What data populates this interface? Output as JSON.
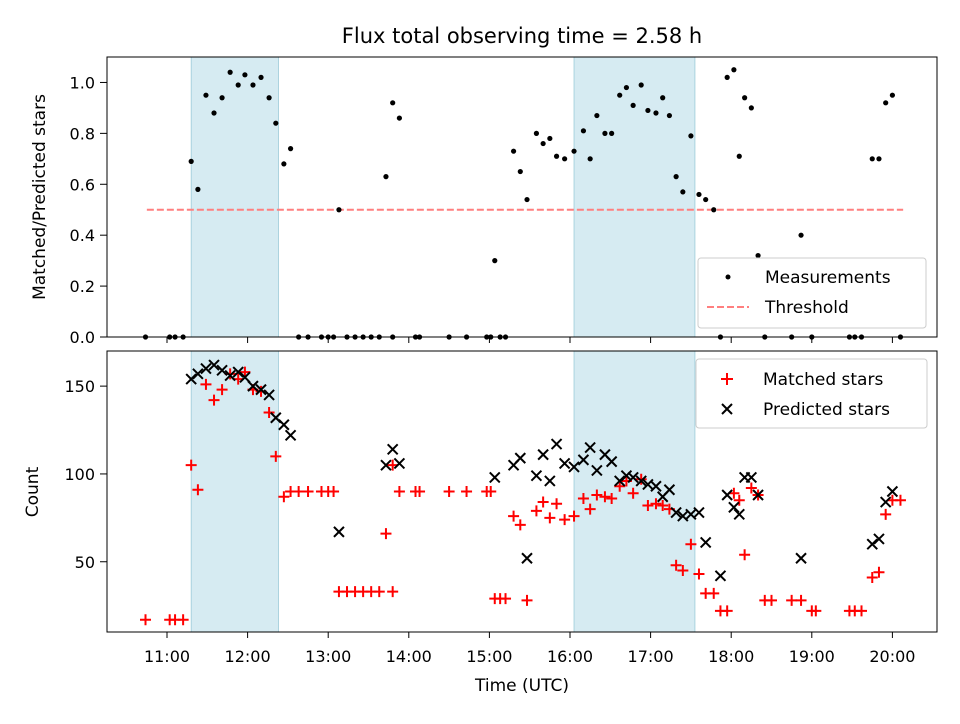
{
  "chart_data": [
    {
      "type": "scatter",
      "title": "Flux total observing time = 2.58 h",
      "xlabel": "",
      "ylabel": "Matched/Predicted stars",
      "ylim": [
        0,
        1.1
      ],
      "yticks": [
        "0.0",
        "0.2",
        "0.4",
        "0.6",
        "0.8",
        "1.0"
      ],
      "shaded_time_ranges": [
        [
          "11:18",
          "12:23"
        ],
        [
          "16:03",
          "17:33"
        ]
      ],
      "legend_position": "lower right",
      "legend": [
        "Measurements",
        "Threshold"
      ],
      "threshold": {
        "name": "Threshold",
        "value": 0.5,
        "x_range": [
          "10:45",
          "20:08"
        ]
      },
      "series": [
        {
          "name": "Measurements",
          "color": "#000000",
          "points": [
            [
              "10:44",
              0
            ],
            [
              "11:02",
              0
            ],
            [
              "11:06",
              0
            ],
            [
              "11:12",
              0
            ],
            [
              "11:18",
              0.69
            ],
            [
              "11:23",
              0.58
            ],
            [
              "11:29",
              0.95
            ],
            [
              "11:35",
              0.88
            ],
            [
              "11:41",
              0.94
            ],
            [
              "11:47",
              1.04
            ],
            [
              "11:53",
              0.99
            ],
            [
              "11:58",
              1.03
            ],
            [
              "12:04",
              0.99
            ],
            [
              "12:10",
              1.02
            ],
            [
              "12:16",
              0.94
            ],
            [
              "12:21",
              0.84
            ],
            [
              "12:27",
              0.68
            ],
            [
              "12:32",
              0.74
            ],
            [
              "12:38",
              0
            ],
            [
              "12:45",
              0
            ],
            [
              "12:55",
              0
            ],
            [
              "13:00",
              0
            ],
            [
              "13:04",
              0
            ],
            [
              "13:08",
              0.5
            ],
            [
              "13:14",
              0
            ],
            [
              "13:20",
              0
            ],
            [
              "13:26",
              0
            ],
            [
              "13:32",
              0
            ],
            [
              "13:38",
              0
            ],
            [
              "13:48",
              0
            ],
            [
              "13:43",
              0.63
            ],
            [
              "13:48",
              0.92
            ],
            [
              "13:53",
              0.86
            ],
            [
              "14:05",
              0
            ],
            [
              "14:08",
              0
            ],
            [
              "14:30",
              0
            ],
            [
              "14:43",
              0
            ],
            [
              "14:58",
              0
            ],
            [
              "15:01",
              0
            ],
            [
              "15:04",
              0.3
            ],
            [
              "15:08",
              0
            ],
            [
              "15:12",
              0
            ],
            [
              "15:18",
              0.73
            ],
            [
              "15:23",
              0.65
            ],
            [
              "15:28",
              0.54
            ],
            [
              "15:35",
              0.8
            ],
            [
              "15:40",
              0.76
            ],
            [
              "15:45",
              0.78
            ],
            [
              "15:50",
              0.71
            ],
            [
              "15:56",
              0.7
            ],
            [
              "16:03",
              0.73
            ],
            [
              "16:10",
              0.81
            ],
            [
              "16:15",
              0.7
            ],
            [
              "16:20",
              0.87
            ],
            [
              "16:26",
              0.8
            ],
            [
              "16:31",
              0.8
            ],
            [
              "16:37",
              0.95
            ],
            [
              "16:42",
              0.98
            ],
            [
              "16:47",
              0.91
            ],
            [
              "16:53",
              0.99
            ],
            [
              "16:58",
              0.89
            ],
            [
              "17:04",
              0.88
            ],
            [
              "17:09",
              0.94
            ],
            [
              "17:14",
              0.87
            ],
            [
              "17:19",
              0.63
            ],
            [
              "17:24",
              0.57
            ],
            [
              "17:30",
              0.79
            ],
            [
              "17:36",
              0.56
            ],
            [
              "17:41",
              0.54
            ],
            [
              "17:47",
              0.5
            ],
            [
              "17:52",
              0
            ],
            [
              "17:57",
              1.02
            ],
            [
              "18:02",
              1.05
            ],
            [
              "18:06",
              0.71
            ],
            [
              "18:10",
              0.94
            ],
            [
              "18:15",
              0.9
            ],
            [
              "18:20",
              0.32
            ],
            [
              "18:25",
              0
            ],
            [
              "18:45",
              0
            ],
            [
              "18:52",
              0.4
            ],
            [
              "19:00",
              0
            ],
            [
              "19:28",
              0
            ],
            [
              "19:32",
              0
            ],
            [
              "19:37",
              0
            ],
            [
              "19:45",
              0.7
            ],
            [
              "19:50",
              0.7
            ],
            [
              "19:55",
              0.92
            ],
            [
              "20:00",
              0.95
            ],
            [
              "20:06",
              0
            ]
          ]
        }
      ]
    },
    {
      "type": "scatter",
      "title": "",
      "xlabel": "Time (UTC)",
      "ylabel": "Count",
      "ylim": [
        10,
        170
      ],
      "yticks": [
        "50",
        "100",
        "150"
      ],
      "xticks": [
        "11:00",
        "12:00",
        "13:00",
        "14:00",
        "15:00",
        "16:00",
        "17:00",
        "18:00",
        "19:00",
        "20:00"
      ],
      "shaded_time_ranges": [
        [
          "11:18",
          "12:23"
        ],
        [
          "16:03",
          "17:33"
        ]
      ],
      "legend_position": "upper right",
      "legend": [
        "Matched stars",
        "Predicted stars"
      ],
      "series": [
        {
          "name": "Matched stars",
          "color": "#ff0000",
          "marker": "plus",
          "points": [
            [
              "10:44",
              17
            ],
            [
              "11:02",
              17
            ],
            [
              "11:06",
              17
            ],
            [
              "11:12",
              17
            ],
            [
              "11:18",
              105
            ],
            [
              "11:23",
              91
            ],
            [
              "11:29",
              151
            ],
            [
              "11:35",
              142
            ],
            [
              "11:41",
              148
            ],
            [
              "11:47",
              157
            ],
            [
              "11:53",
              154
            ],
            [
              "11:58",
              158
            ],
            [
              "12:04",
              148
            ],
            [
              "12:10",
              147
            ],
            [
              "12:16",
              135
            ],
            [
              "12:21",
              110
            ],
            [
              "12:27",
              87
            ],
            [
              "12:32",
              90
            ],
            [
              "12:38",
              90
            ],
            [
              "12:45",
              90
            ],
            [
              "12:55",
              90
            ],
            [
              "13:00",
              90
            ],
            [
              "13:04",
              90
            ],
            [
              "13:08",
              33
            ],
            [
              "13:14",
              33
            ],
            [
              "13:20",
              33
            ],
            [
              "13:26",
              33
            ],
            [
              "13:32",
              33
            ],
            [
              "13:38",
              33
            ],
            [
              "13:48",
              33
            ],
            [
              "13:43",
              66
            ],
            [
              "13:48",
              105
            ],
            [
              "13:53",
              90
            ],
            [
              "14:05",
              90
            ],
            [
              "14:08",
              90
            ],
            [
              "14:30",
              90
            ],
            [
              "14:43",
              90
            ],
            [
              "14:58",
              90
            ],
            [
              "15:01",
              90
            ],
            [
              "15:04",
              29
            ],
            [
              "15:08",
              29
            ],
            [
              "15:12",
              29
            ],
            [
              "15:18",
              76
            ],
            [
              "15:23",
              71
            ],
            [
              "15:28",
              28
            ],
            [
              "15:35",
              79
            ],
            [
              "15:40",
              84
            ],
            [
              "15:45",
              75
            ],
            [
              "15:50",
              83
            ],
            [
              "15:56",
              74
            ],
            [
              "16:03",
              76
            ],
            [
              "16:10",
              86
            ],
            [
              "16:15",
              80
            ],
            [
              "16:20",
              88
            ],
            [
              "16:26",
              87
            ],
            [
              "16:31",
              86
            ],
            [
              "16:37",
              93
            ],
            [
              "16:42",
              96
            ],
            [
              "16:47",
              89
            ],
            [
              "16:53",
              97
            ],
            [
              "16:58",
              82
            ],
            [
              "17:04",
              83
            ],
            [
              "17:09",
              82
            ],
            [
              "17:14",
              80
            ],
            [
              "17:19",
              48
            ],
            [
              "17:24",
              45
            ],
            [
              "17:30",
              60
            ],
            [
              "17:36",
              43
            ],
            [
              "17:41",
              32
            ],
            [
              "17:47",
              32
            ],
            [
              "17:52",
              22
            ],
            [
              "17:57",
              22
            ],
            [
              "18:02",
              89
            ],
            [
              "18:06",
              85
            ],
            [
              "18:10",
              54
            ],
            [
              "18:15",
              92
            ],
            [
              "18:20",
              88
            ],
            [
              "18:25",
              28
            ],
            [
              "18:30",
              28
            ],
            [
              "18:45",
              28
            ],
            [
              "18:52",
              28
            ],
            [
              "19:00",
              22
            ],
            [
              "19:03",
              22
            ],
            [
              "19:28",
              22
            ],
            [
              "19:32",
              22
            ],
            [
              "19:37",
              22
            ],
            [
              "19:45",
              41
            ],
            [
              "19:50",
              44
            ],
            [
              "19:55",
              77
            ],
            [
              "20:00",
              85
            ],
            [
              "20:06",
              85
            ]
          ]
        },
        {
          "name": "Predicted stars",
          "color": "#000000",
          "marker": "x",
          "points": [
            [
              "11:18",
              154
            ],
            [
              "11:23",
              157
            ],
            [
              "11:29",
              160
            ],
            [
              "11:35",
              162
            ],
            [
              "11:41",
              159
            ],
            [
              "11:47",
              156
            ],
            [
              "11:53",
              158
            ],
            [
              "11:58",
              155
            ],
            [
              "12:04",
              150
            ],
            [
              "12:10",
              148
            ],
            [
              "12:16",
              145
            ],
            [
              "12:21",
              132
            ],
            [
              "12:27",
              128
            ],
            [
              "12:32",
              122
            ],
            [
              "13:08",
              67
            ],
            [
              "13:43",
              105
            ],
            [
              "13:48",
              114
            ],
            [
              "13:53",
              106
            ],
            [
              "15:04",
              98
            ],
            [
              "15:18",
              105
            ],
            [
              "15:23",
              109
            ],
            [
              "15:28",
              52
            ],
            [
              "15:35",
              99
            ],
            [
              "15:40",
              111
            ],
            [
              "15:45",
              96
            ],
            [
              "15:50",
              117
            ],
            [
              "15:56",
              106
            ],
            [
              "16:03",
              104
            ],
            [
              "16:10",
              108
            ],
            [
              "16:15",
              115
            ],
            [
              "16:20",
              102
            ],
            [
              "16:26",
              111
            ],
            [
              "16:31",
              107
            ],
            [
              "16:37",
              96
            ],
            [
              "16:42",
              99
            ],
            [
              "16:47",
              98
            ],
            [
              "16:53",
              96
            ],
            [
              "16:58",
              94
            ],
            [
              "17:04",
              93
            ],
            [
              "17:09",
              87
            ],
            [
              "17:14",
              91
            ],
            [
              "17:19",
              78
            ],
            [
              "17:24",
              76
            ],
            [
              "17:30",
              77
            ],
            [
              "17:36",
              78
            ],
            [
              "17:41",
              61
            ],
            [
              "17:52",
              42
            ],
            [
              "17:57",
              88
            ],
            [
              "18:02",
              81
            ],
            [
              "18:06",
              77
            ],
            [
              "18:10",
              98
            ],
            [
              "18:15",
              98
            ],
            [
              "18:20",
              88
            ],
            [
              "18:52",
              52
            ],
            [
              "19:45",
              60
            ],
            [
              "19:50",
              63
            ],
            [
              "19:55",
              84
            ],
            [
              "20:00",
              90
            ]
          ]
        }
      ]
    }
  ]
}
